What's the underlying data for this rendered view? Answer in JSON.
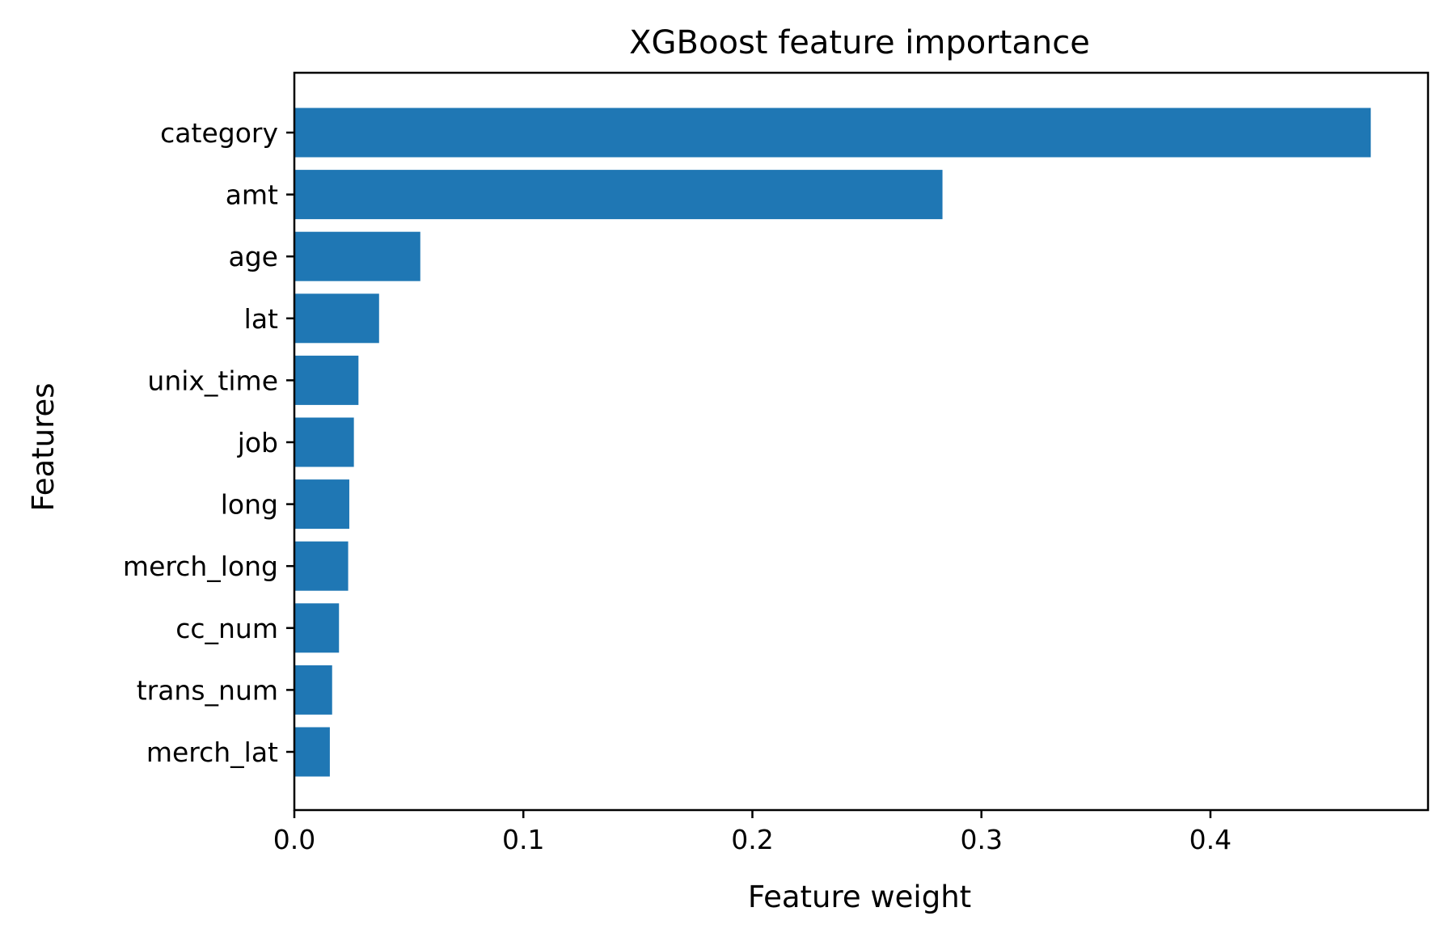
{
  "chart_data": {
    "type": "bar",
    "orientation": "horizontal",
    "title": "XGBoost feature importance",
    "xlabel": "Feature weight",
    "ylabel": "Features",
    "categories": [
      "category",
      "amt",
      "age",
      "lat",
      "unix_time",
      "job",
      "long",
      "merch_long",
      "cc_num",
      "trans_num",
      "merch_lat"
    ],
    "values": [
      0.47,
      0.283,
      0.055,
      0.037,
      0.028,
      0.026,
      0.024,
      0.0235,
      0.0195,
      0.0165,
      0.0155
    ],
    "xlim": [
      0,
      0.495
    ],
    "xticks": [
      0.0,
      0.1,
      0.2,
      0.3,
      0.4
    ],
    "xtick_labels": [
      "0.0",
      "0.1",
      "0.2",
      "0.3",
      "0.4"
    ],
    "bar_color": "#1f77b4",
    "grid": false,
    "legend": "none"
  }
}
